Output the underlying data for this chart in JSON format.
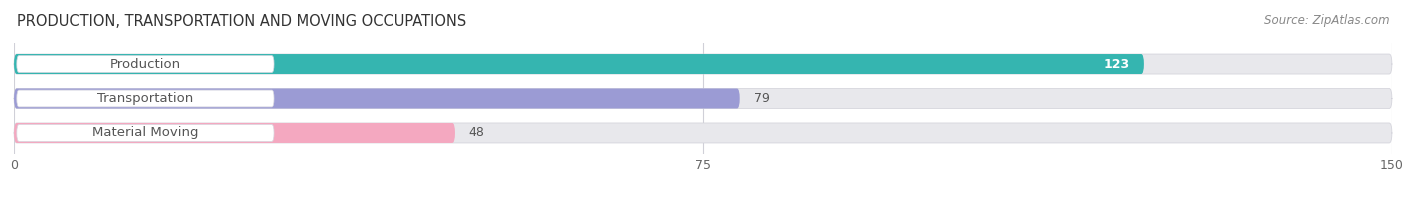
{
  "title": "PRODUCTION, TRANSPORTATION AND MOVING OCCUPATIONS",
  "source": "Source: ZipAtlas.com",
  "categories": [
    "Production",
    "Transportation",
    "Material Moving"
  ],
  "values": [
    123,
    79,
    48
  ],
  "bar_colors": [
    "#35b5b0",
    "#9b9bd4",
    "#f4a8c0"
  ],
  "bar_bg_color": "#e8e8ec",
  "xlim": [
    0,
    150
  ],
  "xticks": [
    0,
    75,
    150
  ],
  "title_fontsize": 10.5,
  "source_fontsize": 8.5,
  "label_fontsize": 9.5,
  "value_fontsize": 9,
  "background_color": "#ffffff",
  "bar_height": 0.58,
  "label_box_color": "#ffffff",
  "label_text_color": "#555555",
  "value_inside_color": "#ffffff",
  "value_outside_color": "#555555"
}
